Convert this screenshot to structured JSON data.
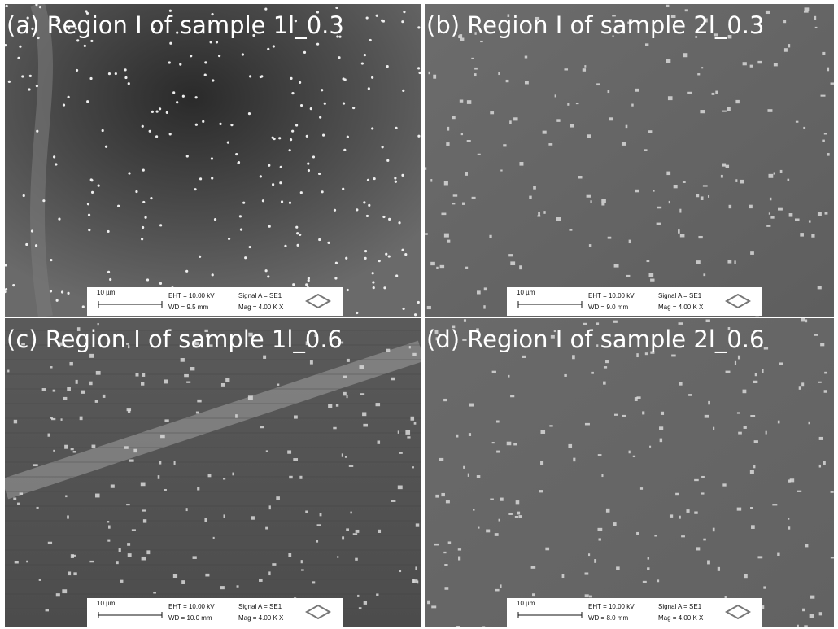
{
  "panels": [
    {
      "label": "(a) Region I of sample 1l_0.3",
      "scale": "10 µm",
      "eht": "EHT = 10.00 kV",
      "wd": "WD = 9.5 mm",
      "signal": "Signal A = SE1",
      "mag": "Mag =  4.00 K X"
    },
    {
      "label": "(b) Region I of sample 2l_0.3",
      "scale": "10 µm",
      "eht": "EHT = 10.00 kV",
      "wd": "WD = 9.0 mm",
      "signal": "Signal A = SE1",
      "mag": "Mag =  4.00 K X"
    },
    {
      "label": "(c) Region I of sample 1l_0.6",
      "scale": "10 µm",
      "eht": "EHT = 10.00 kV",
      "wd": "WD = 10.0 mm",
      "signal": "Signal A = SE1",
      "mag": "Mag =  4.00 K X"
    },
    {
      "label": "(d) Region I of sample 2l_0.6",
      "scale": "10 µm",
      "eht": "EHT = 10.00 kV",
      "wd": "WD = 8.0 mm",
      "signal": "Signal A = SE1",
      "mag": "Mag =  4.00 K X"
    }
  ]
}
